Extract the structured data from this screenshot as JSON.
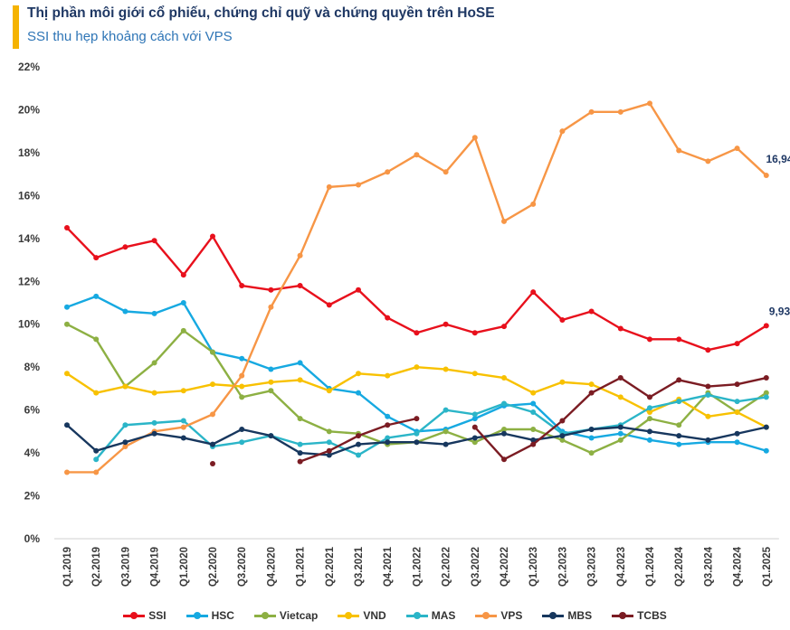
{
  "header": {
    "title": "Thị phần môi giới cổ phiếu, chứng chỉ quỹ và chứng quyền trên HoSE",
    "subtitle": "SSI thu hẹp khoảng cách với VPS"
  },
  "chart_data": {
    "type": "line",
    "title": "Thị phần môi giới cổ phiếu, chứng chỉ quỹ và chứng quyền trên HoSE",
    "subtitle": "SSI thu hẹp khoảng cách với VPS",
    "xlabel": "",
    "ylabel": "",
    "ylim": [
      0,
      22
    ],
    "yticks": [
      "0%",
      "2%",
      "4%",
      "6%",
      "8%",
      "10%",
      "12%",
      "14%",
      "16%",
      "18%",
      "20%",
      "22%"
    ],
    "categories": [
      "Q1.2019",
      "Q2.2019",
      "Q3.2019",
      "Q4.2019",
      "Q1.2020",
      "Q2.2020",
      "Q3.2020",
      "Q4.2020",
      "Q1.2021",
      "Q2.2021",
      "Q3.2021",
      "Q4.2021",
      "Q1.2022",
      "Q2.2022",
      "Q3.2022",
      "Q4.2022",
      "Q1.2023",
      "Q2.2023",
      "Q3.2023",
      "Q4.2023",
      "Q1.2024",
      "Q2.2024",
      "Q3.2024",
      "Q4.2024",
      "Q1.2025"
    ],
    "grid": false,
    "legend_position": "bottom",
    "series": [
      {
        "name": "SSI",
        "color": "#e8101c",
        "values": [
          14.5,
          13.1,
          13.6,
          13.9,
          12.3,
          14.1,
          11.8,
          11.6,
          11.8,
          10.9,
          11.6,
          10.3,
          9.6,
          10.0,
          9.6,
          9.9,
          11.5,
          10.2,
          10.6,
          9.8,
          9.3,
          9.3,
          8.8,
          9.1,
          9.93
        ]
      },
      {
        "name": "HSC",
        "color": "#16a9e1",
        "values": [
          10.8,
          11.3,
          10.6,
          10.5,
          11.0,
          8.7,
          8.4,
          7.9,
          8.2,
          7.0,
          6.8,
          5.7,
          5.0,
          5.1,
          5.6,
          6.2,
          6.3,
          5.0,
          4.7,
          4.9,
          4.6,
          4.4,
          4.5,
          4.5,
          4.1
        ]
      },
      {
        "name": "Vietcap",
        "color": "#8db043",
        "values": [
          10.0,
          9.3,
          7.1,
          8.2,
          9.7,
          8.7,
          6.6,
          6.9,
          5.6,
          5.0,
          4.9,
          4.4,
          4.5,
          5.0,
          4.5,
          5.1,
          5.1,
          4.6,
          4.0,
          4.6,
          5.6,
          5.3,
          6.8,
          5.9,
          6.8
        ]
      },
      {
        "name": "VND",
        "color": "#f8c100",
        "values": [
          7.7,
          6.8,
          7.1,
          6.8,
          6.9,
          7.2,
          7.1,
          7.3,
          7.4,
          6.9,
          7.7,
          7.6,
          8.0,
          7.9,
          7.7,
          7.5,
          6.8,
          7.3,
          7.2,
          6.6,
          5.9,
          6.5,
          5.7,
          5.9,
          5.2
        ]
      },
      {
        "name": "MAS",
        "color": "#2bb5c8",
        "values": [
          null,
          3.7,
          5.3,
          5.4,
          5.5,
          4.3,
          4.5,
          4.8,
          4.4,
          4.5,
          3.9,
          4.7,
          4.9,
          6.0,
          5.8,
          6.3,
          5.9,
          4.9,
          5.1,
          5.3,
          6.1,
          6.4,
          6.7,
          6.4,
          6.6
        ]
      },
      {
        "name": "VPS",
        "color": "#f79646",
        "values": [
          3.1,
          3.1,
          4.3,
          5.0,
          5.2,
          5.8,
          7.6,
          10.8,
          13.2,
          16.4,
          16.5,
          17.1,
          17.9,
          17.1,
          18.7,
          14.8,
          15.6,
          19.0,
          19.9,
          19.9,
          20.3,
          18.1,
          17.6,
          18.2,
          16.94
        ]
      },
      {
        "name": "MBS",
        "color": "#17375e",
        "values": [
          5.3,
          4.1,
          4.5,
          4.9,
          4.7,
          4.4,
          5.1,
          4.8,
          4.0,
          3.9,
          4.4,
          4.5,
          4.5,
          4.4,
          4.7,
          4.9,
          4.6,
          4.8,
          5.1,
          5.2,
          5.0,
          4.8,
          4.6,
          4.9,
          5.2
        ]
      },
      {
        "name": "TCBS",
        "color": "#7b1c23",
        "values": [
          null,
          null,
          null,
          null,
          null,
          3.5,
          null,
          null,
          3.6,
          4.1,
          4.8,
          5.3,
          5.6,
          null,
          5.2,
          3.7,
          4.4,
          5.5,
          6.8,
          7.5,
          6.6,
          7.4,
          7.1,
          7.2,
          7.5
        ]
      }
    ],
    "annotations": [
      {
        "series": "VPS",
        "text": "16,94%"
      },
      {
        "series": "SSI",
        "text": "9,93%"
      }
    ]
  }
}
